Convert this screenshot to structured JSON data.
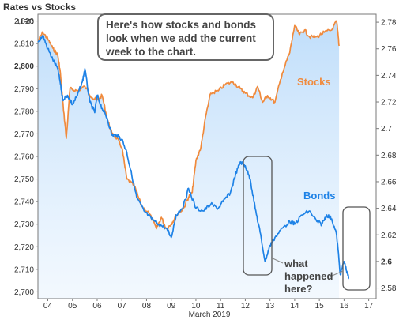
{
  "chart_data": {
    "type": "line",
    "title": "Rates vs Stocks",
    "left_axis": {
      "unit": "USD",
      "range": [
        2697,
        2823
      ],
      "ticks": [
        2700,
        2710,
        2720,
        2730,
        2740,
        2750,
        2760,
        2770,
        2780,
        2790,
        2800,
        2810,
        2820
      ],
      "tick_labels": [
        "2,700",
        "2,710",
        "2,720",
        "2,730",
        "2,740",
        "2,750",
        "2,760",
        "2,770",
        "2,780",
        "2,790",
        "2,800",
        "2,810",
        "2,820"
      ],
      "bold_tick": "2,800"
    },
    "right_axis": {
      "range": [
        2.572,
        2.786
      ],
      "ticks": [
        2.58,
        2.6,
        2.62,
        2.64,
        2.66,
        2.68,
        2.7,
        2.72,
        2.74,
        2.76,
        2.78
      ],
      "tick_labels": [
        "2.58",
        "2.6",
        "2.62",
        "2.64",
        "2.66",
        "2.68",
        "2.7",
        "2.72",
        "2.74",
        "2.76",
        "2.78"
      ],
      "bold_tick": "2.6"
    },
    "x_axis": {
      "label": "March 2019",
      "range": [
        3.6,
        17.3
      ],
      "ticks": [
        4,
        5,
        6,
        7,
        8,
        9,
        10,
        11,
        12,
        13,
        14,
        15,
        16,
        17
      ],
      "tick_labels": [
        "04",
        "05",
        "06",
        "07",
        "08",
        "09",
        "10",
        "11",
        "12",
        "13",
        "14",
        "15",
        "16",
        "17"
      ]
    },
    "grid": false,
    "series": [
      {
        "name": "Stocks",
        "axis": "left",
        "color": "#f08a3c",
        "points": [
          [
            3.6,
            2811
          ],
          [
            3.8,
            2815
          ],
          [
            4.0,
            2812
          ],
          [
            4.2,
            2808
          ],
          [
            4.4,
            2805
          ],
          [
            4.5,
            2798
          ],
          [
            4.6,
            2785
          ],
          [
            4.75,
            2768
          ],
          [
            4.9,
            2790
          ],
          [
            5.2,
            2789
          ],
          [
            5.5,
            2791
          ],
          [
            5.8,
            2786
          ],
          [
            6.0,
            2785
          ],
          [
            6.2,
            2787
          ],
          [
            6.4,
            2777
          ],
          [
            6.6,
            2770
          ],
          [
            6.8,
            2768
          ],
          [
            7.0,
            2764
          ],
          [
            7.2,
            2750
          ],
          [
            7.5,
            2747
          ],
          [
            7.8,
            2738
          ],
          [
            8.1,
            2735
          ],
          [
            8.4,
            2728
          ],
          [
            8.6,
            2733
          ],
          [
            8.8,
            2728
          ],
          [
            9.0,
            2730
          ],
          [
            9.2,
            2734
          ],
          [
            9.5,
            2737
          ],
          [
            9.7,
            2742
          ],
          [
            9.85,
            2744
          ],
          [
            10.0,
            2758
          ],
          [
            10.2,
            2764
          ],
          [
            10.4,
            2778
          ],
          [
            10.6,
            2788
          ],
          [
            10.9,
            2789
          ],
          [
            11.2,
            2792
          ],
          [
            11.5,
            2793
          ],
          [
            11.8,
            2790
          ],
          [
            12.0,
            2788
          ],
          [
            12.3,
            2786
          ],
          [
            12.5,
            2791
          ],
          [
            12.7,
            2784
          ],
          [
            12.9,
            2787
          ],
          [
            13.2,
            2784
          ],
          [
            13.5,
            2797
          ],
          [
            13.8,
            2806
          ],
          [
            14.0,
            2818
          ],
          [
            14.2,
            2814
          ],
          [
            14.4,
            2816
          ],
          [
            14.6,
            2813
          ],
          [
            14.9,
            2813
          ],
          [
            15.2,
            2815
          ],
          [
            15.5,
            2816
          ],
          [
            15.7,
            2820
          ],
          [
            15.8,
            2809
          ]
        ]
      },
      {
        "name": "Bonds",
        "axis": "right",
        "color": "#1e82e6",
        "points": [
          [
            3.6,
            2.765
          ],
          [
            3.8,
            2.77
          ],
          [
            4.0,
            2.76
          ],
          [
            4.2,
            2.752
          ],
          [
            4.4,
            2.745
          ],
          [
            4.5,
            2.735
          ],
          [
            4.6,
            2.722
          ],
          [
            4.8,
            2.725
          ],
          [
            5.0,
            2.718
          ],
          [
            5.2,
            2.725
          ],
          [
            5.4,
            2.735
          ],
          [
            5.5,
            2.745
          ],
          [
            5.7,
            2.72
          ],
          [
            5.9,
            2.712
          ],
          [
            6.0,
            2.725
          ],
          [
            6.2,
            2.715
          ],
          [
            6.4,
            2.708
          ],
          [
            6.6,
            2.695
          ],
          [
            6.8,
            2.695
          ],
          [
            7.0,
            2.692
          ],
          [
            7.2,
            2.682
          ],
          [
            7.4,
            2.665
          ],
          [
            7.6,
            2.648
          ],
          [
            7.9,
            2.638
          ],
          [
            8.2,
            2.632
          ],
          [
            8.5,
            2.628
          ],
          [
            8.8,
            2.625
          ],
          [
            9.0,
            2.618
          ],
          [
            9.2,
            2.635
          ],
          [
            9.5,
            2.642
          ],
          [
            9.7,
            2.655
          ],
          [
            10.0,
            2.64
          ],
          [
            10.3,
            2.638
          ],
          [
            10.6,
            2.643
          ],
          [
            10.9,
            2.64
          ],
          [
            11.1,
            2.645
          ],
          [
            11.4,
            2.652
          ],
          [
            11.6,
            2.665
          ],
          [
            11.8,
            2.675
          ],
          [
            12.0,
            2.672
          ],
          [
            12.2,
            2.662
          ],
          [
            12.4,
            2.64
          ],
          [
            12.6,
            2.622
          ],
          [
            12.8,
            2.6
          ],
          [
            13.0,
            2.612
          ],
          [
            13.2,
            2.618
          ],
          [
            13.5,
            2.625
          ],
          [
            13.8,
            2.63
          ],
          [
            14.0,
            2.628
          ],
          [
            14.3,
            2.635
          ],
          [
            14.6,
            2.638
          ],
          [
            14.9,
            2.63
          ],
          [
            15.1,
            2.628
          ],
          [
            15.3,
            2.635
          ],
          [
            15.5,
            2.632
          ],
          [
            15.7,
            2.62
          ],
          [
            15.85,
            2.59
          ],
          [
            16.0,
            2.6
          ],
          [
            16.1,
            2.593
          ],
          [
            16.2,
            2.587
          ]
        ]
      }
    ],
    "callout": {
      "lines": [
        "Here's how stocks and bonds",
        "look when we add the current",
        "week to the chart."
      ]
    },
    "annotation": {
      "lines": [
        "what",
        "happened",
        "here?"
      ]
    }
  }
}
